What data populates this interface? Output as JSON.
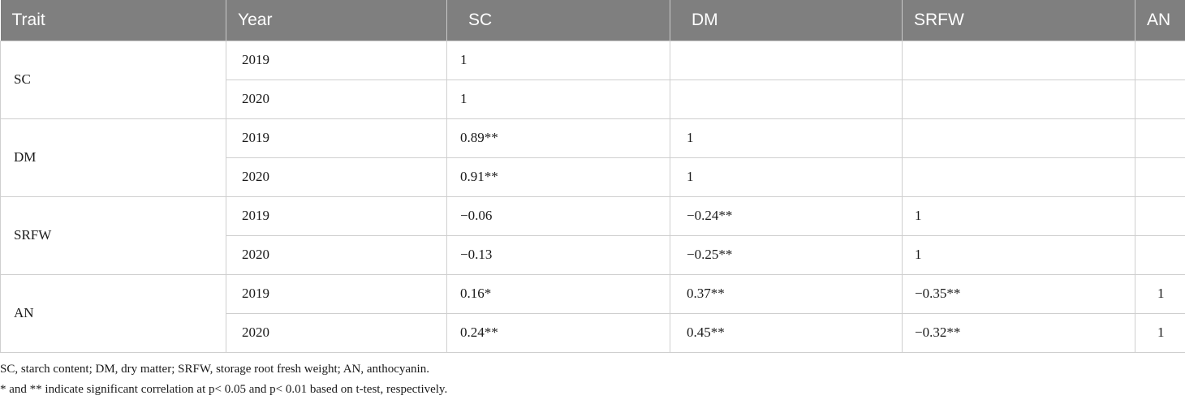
{
  "header": [
    "Trait",
    "Year",
    "SC",
    "DM",
    "SRFW",
    "AN"
  ],
  "groups": [
    {
      "trait": "SC",
      "rows": [
        {
          "year": "2019",
          "sc": "1",
          "dm": "",
          "srfw": "",
          "an": ""
        },
        {
          "year": "2020",
          "sc": "1",
          "dm": "",
          "srfw": "",
          "an": ""
        }
      ]
    },
    {
      "trait": "DM",
      "rows": [
        {
          "year": "2019",
          "sc": "0.89**",
          "dm": "1",
          "srfw": "",
          "an": ""
        },
        {
          "year": "2020",
          "sc": "0.91**",
          "dm": "1",
          "srfw": "",
          "an": ""
        }
      ]
    },
    {
      "trait": "SRFW",
      "rows": [
        {
          "year": "2019",
          "sc": "−0.06",
          "dm": "−0.24**",
          "srfw": "1",
          "an": ""
        },
        {
          "year": "2020",
          "sc": "−0.13",
          "dm": "−0.25**",
          "srfw": "1",
          "an": ""
        }
      ]
    },
    {
      "trait": "AN",
      "rows": [
        {
          "year": "2019",
          "sc": "0.16*",
          "dm": "0.37**",
          "srfw": "−0.35**",
          "an": "1"
        },
        {
          "year": "2020",
          "sc": "0.24**",
          "dm": "0.45**",
          "srfw": "−0.32**",
          "an": "1"
        }
      ]
    }
  ],
  "footnotes": [
    "SC, starch content; DM, dry matter; SRFW, storage root fresh weight; AN, anthocyanin.",
    "* and ** indicate significant correlation at p< 0.05 and p< 0.01 based on t-test, respectively."
  ]
}
